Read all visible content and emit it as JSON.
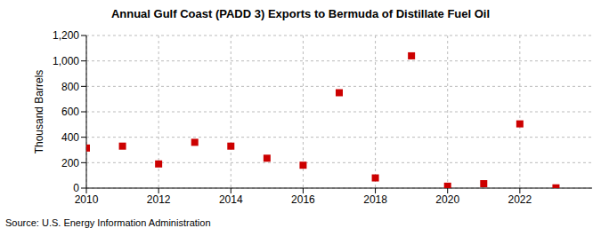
{
  "chart_data": {
    "type": "scatter",
    "title": "Annual Gulf Coast (PADD 3) Exports to Bermuda of Distillate Fuel Oil",
    "y_label": "Thousand Barrels",
    "source": "Source: U.S. Energy Information Administration",
    "x": [
      2010,
      2011,
      2012,
      2013,
      2014,
      2015,
      2016,
      2017,
      2018,
      2019,
      2020,
      2021,
      2022,
      2023
    ],
    "values": [
      315,
      330,
      190,
      360,
      330,
      235,
      180,
      750,
      80,
      1040,
      15,
      35,
      505,
      2
    ],
    "color": "#cc0000",
    "marker": "square",
    "xlim": [
      2010,
      2024
    ],
    "xticks": [
      2010,
      2012,
      2014,
      2016,
      2018,
      2020,
      2022
    ],
    "ylim": [
      0,
      1200
    ],
    "yticks": [
      0,
      200,
      400,
      600,
      800,
      {
        "value": 1000,
        "label": "1,000"
      },
      {
        "value": 1200,
        "label": "1,200"
      }
    ],
    "grid": true
  }
}
